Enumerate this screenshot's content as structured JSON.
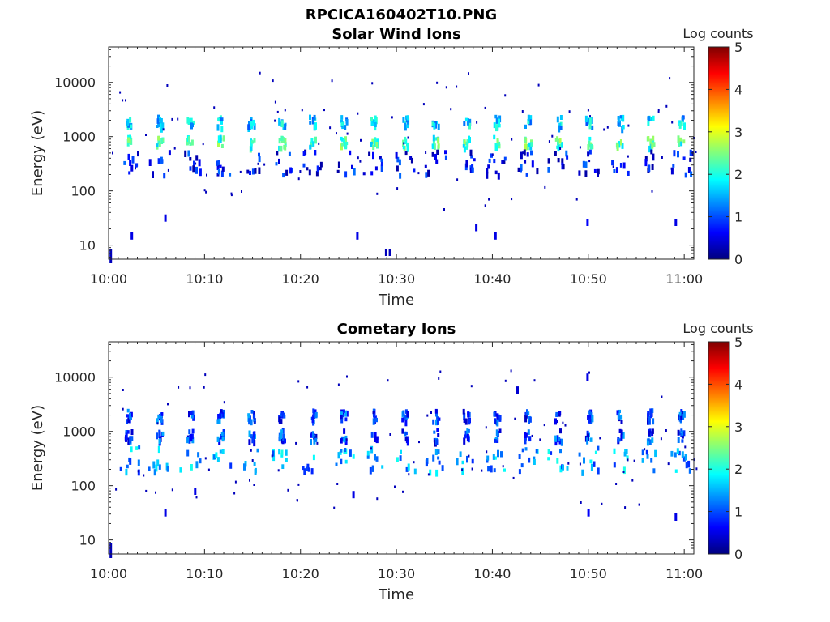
{
  "figure_title": "RPCICA160402T10.PNG",
  "colormap_stops": [
    "#00007f",
    "#0000ff",
    "#007fff",
    "#00ffff",
    "#7fff7f",
    "#ffff00",
    "#ff7f00",
    "#ff0000",
    "#7f0000"
  ],
  "chart_data": [
    {
      "type": "heatmap",
      "title": "Solar Wind Ions",
      "xlabel": "Time",
      "ylabel": "Energy (eV)",
      "xticks": [
        "10:00",
        "10:10",
        "10:20",
        "10:30",
        "10:40",
        "10:50",
        "11:00"
      ],
      "xlim_minutes": [
        0,
        61
      ],
      "yscale": "log",
      "yticks": [
        10,
        100,
        1000,
        10000
      ],
      "ytick_labels": [
        "10",
        "100",
        "1000",
        "10000"
      ],
      "ylim": [
        5.5,
        45000
      ],
      "colorbar": {
        "label": "Log counts",
        "range": [
          0,
          5
        ],
        "ticks": [
          "0",
          "1",
          "2",
          "3",
          "4",
          "5"
        ]
      },
      "scan_times_minutes": [
        0,
        2.0,
        5.2,
        8.4,
        11.6,
        14.8,
        18.0,
        21.2,
        24.4,
        27.6,
        30.8,
        34.0,
        37.2,
        40.4,
        43.6,
        46.8,
        50.0,
        53.2,
        56.4,
        59.6
      ],
      "bands": [
        {
          "energy_eV": 2000,
          "log_counts": 1.6
        },
        {
          "energy_eV": 850,
          "log_counts": 2.2
        },
        {
          "energy_eV": 350,
          "log_counts": 0.6
        }
      ],
      "low_energy_points": [
        {
          "minute": 0.1,
          "energy_eV": 7,
          "log_counts": 0.3
        },
        {
          "minute": 2.3,
          "energy_eV": 14,
          "log_counts": 0.5
        },
        {
          "minute": 5.8,
          "energy_eV": 30,
          "log_counts": 0.5
        },
        {
          "minute": 25.8,
          "energy_eV": 14,
          "log_counts": 0.5
        },
        {
          "minute": 28.8,
          "energy_eV": 7,
          "log_counts": 0.3
        },
        {
          "minute": 29.2,
          "energy_eV": 7,
          "log_counts": 0.3
        },
        {
          "minute": 38.2,
          "energy_eV": 20,
          "log_counts": 0.5
        },
        {
          "minute": 40.2,
          "energy_eV": 14,
          "log_counts": 0.5
        },
        {
          "minute": 49.8,
          "energy_eV": 25,
          "log_counts": 0.6
        },
        {
          "minute": 59.0,
          "energy_eV": 25,
          "log_counts": 0.5
        }
      ]
    },
    {
      "type": "heatmap",
      "title": "Cometary Ions",
      "xlabel": "Time",
      "ylabel": "Energy (eV)",
      "xticks": [
        "10:00",
        "10:10",
        "10:20",
        "10:30",
        "10:40",
        "10:50",
        "11:00"
      ],
      "xlim_minutes": [
        0,
        61
      ],
      "yscale": "log",
      "yticks": [
        10,
        100,
        1000,
        10000
      ],
      "ytick_labels": [
        "10",
        "100",
        "1000",
        "10000"
      ],
      "ylim": [
        5.5,
        45000
      ],
      "colorbar": {
        "label": "Log counts",
        "range": [
          0,
          5
        ],
        "ticks": [
          "0",
          "1",
          "2",
          "3",
          "4",
          "5"
        ]
      },
      "scan_times_minutes": [
        0,
        2.0,
        5.2,
        8.4,
        11.6,
        14.8,
        18.0,
        21.2,
        24.4,
        27.6,
        30.8,
        34.0,
        37.2,
        40.4,
        43.6,
        46.8,
        50.0,
        53.2,
        56.4,
        59.6
      ],
      "bands": [
        {
          "energy_eV": 2100,
          "log_counts": 0.9
        },
        {
          "energy_eV": 900,
          "log_counts": 0.9
        },
        {
          "energy_eV": 330,
          "log_counts": 1.4
        }
      ],
      "low_energy_points": [
        {
          "minute": 0.1,
          "energy_eV": 7,
          "log_counts": 0.3
        },
        {
          "minute": 5.8,
          "energy_eV": 30,
          "log_counts": 0.5
        },
        {
          "minute": 8.9,
          "energy_eV": 75,
          "log_counts": 0.5
        },
        {
          "minute": 25.4,
          "energy_eV": 65,
          "log_counts": 0.5
        },
        {
          "minute": 42.5,
          "energy_eV": 5500,
          "log_counts": 0.4
        },
        {
          "minute": 49.8,
          "energy_eV": 9500,
          "log_counts": 0.5
        },
        {
          "minute": 49.9,
          "energy_eV": 30,
          "log_counts": 0.6
        },
        {
          "minute": 59.0,
          "energy_eV": 25,
          "log_counts": 0.5
        }
      ]
    }
  ]
}
